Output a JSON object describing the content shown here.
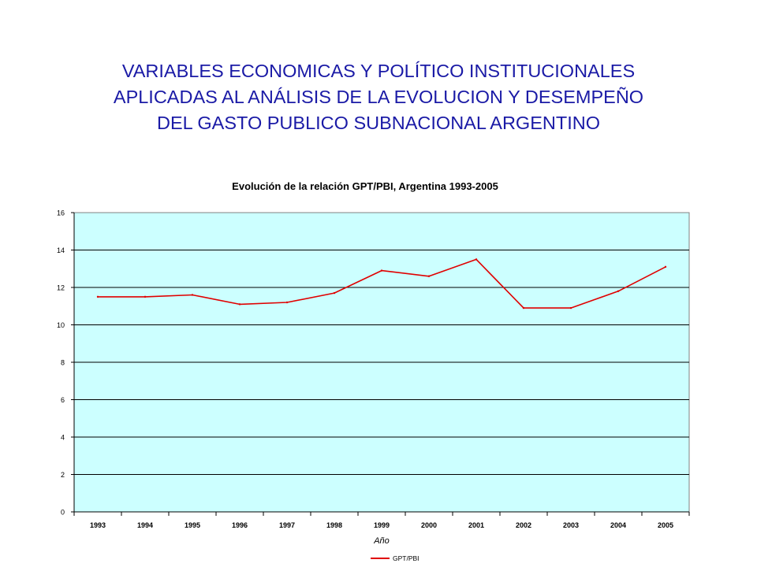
{
  "slide": {
    "title_lines": [
      "VARIABLES ECONOMICAS Y POLÍTICO INSTITUCIONALES",
      "APLICADAS AL ANÁLISIS DE LA EVOLUCION Y DESEMPEÑO",
      "DEL GASTO PUBLICO SUBNACIONAL ARGENTINO"
    ]
  },
  "chart_data": {
    "type": "line",
    "title": "Evolución de la relación GPT/PBI, Argentina 1993-2005",
    "xlabel": "Año",
    "ylabel": "",
    "categories": [
      "1993",
      "1994",
      "1995",
      "1996",
      "1997",
      "1998",
      "1999",
      "2000",
      "2001",
      "2002",
      "2003",
      "2004",
      "2005"
    ],
    "series": [
      {
        "name": "GPT/PBI",
        "color": "#e00000",
        "values": [
          11.5,
          11.5,
          11.6,
          11.1,
          11.2,
          11.7,
          12.9,
          12.6,
          13.5,
          10.9,
          10.9,
          11.8,
          13.1
        ]
      }
    ],
    "ylim": [
      0,
      16
    ],
    "yticks": [
      0,
      2,
      4,
      6,
      8,
      10,
      12,
      14,
      16
    ],
    "grid": true,
    "legend": "bottom",
    "plot_background": "#ccffff"
  }
}
